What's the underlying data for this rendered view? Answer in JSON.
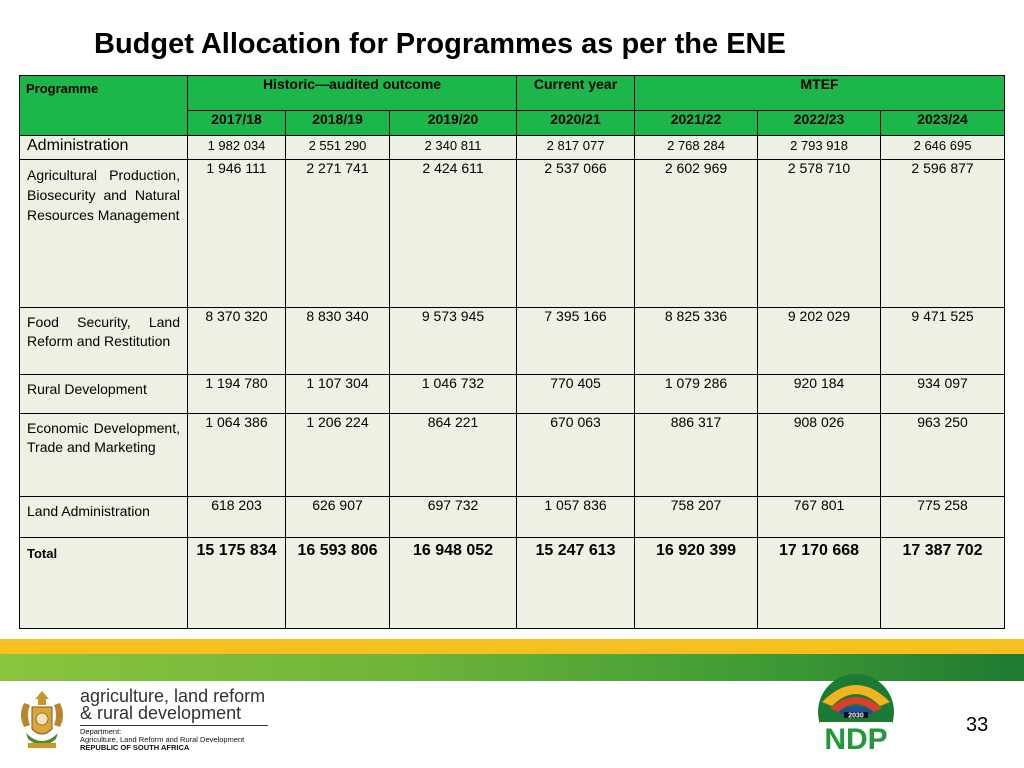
{
  "title": "Budget Allocation for Programmes as per the ENE",
  "table": {
    "programme_header": "Programme",
    "group_headers": {
      "historic": "Historic—audited outcome",
      "current": "Current year",
      "mtef": "MTEF"
    },
    "years": [
      "2017/18",
      "2018/19",
      "2019/20",
      "2020/21",
      "2021/22",
      "2022/23",
      "2023/24"
    ],
    "rows": [
      {
        "name": "Administration",
        "values": [
          "1 982 034",
          "2 551 290",
          "2 340 811",
          "2 817 077",
          "2 768 284",
          "2 793 918",
          "2 646 695"
        ]
      },
      {
        "name": "Agricultural Production, Biosecurity and Natural Resources Management",
        "values": [
          "1 946 111",
          "2 271 741",
          "2 424 611",
          "2 537 066",
          "2 602 969",
          "2 578 710",
          "2 596 877"
        ]
      },
      {
        "name": "Food Security, Land Reform and Restitution",
        "values": [
          "8 370 320",
          "8 830 340",
          "9 573 945",
          "7 395 166",
          "8 825 336",
          "9 202 029",
          "9 471 525"
        ]
      },
      {
        "name": "Rural Development",
        "values": [
          "1 194 780",
          "1 107 304",
          "1 046 732",
          "770 405",
          "1 079 286",
          "920 184",
          "934 097"
        ]
      },
      {
        "name": "Economic Development, Trade and Marketing",
        "values": [
          "1 064 386",
          "1 206 224",
          "864 221",
          "670 063",
          "886 317",
          "908 026",
          "963 250"
        ]
      },
      {
        "name": "Land Administration",
        "values": [
          "618 203",
          "626 907",
          "697 732",
          "1 057 836",
          "758 207",
          "767 801",
          "775 258"
        ]
      },
      {
        "name": "Total",
        "values": [
          "15 175 834",
          "16 593 806",
          "16 948 052",
          "15 247 613",
          "16 920 399",
          "17 170 668",
          "17 387 702"
        ]
      }
    ]
  },
  "footer": {
    "dept_line1": "agriculture, land reform",
    "dept_line2": "& rural development",
    "dept_small1": "Department:",
    "dept_small2": "Agriculture, Land Reform and Rural Development",
    "dept_small3": "REPUBLIC OF SOUTH AFRICA",
    "ndp_label": "NDP",
    "ndp_year": "2030",
    "page_number": "33"
  }
}
